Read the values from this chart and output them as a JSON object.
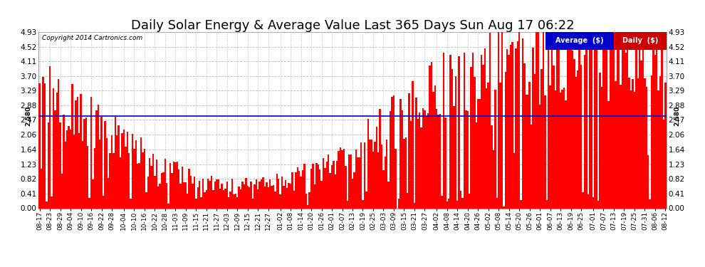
{
  "title": "Daily Solar Energy & Average Value Last 365 Days Sun Aug 17 06:22",
  "copyright": "Copyright 2014 Cartronics.com",
  "average_value": 2.58,
  "y_max": 4.93,
  "y_min": 0.0,
  "y_ticks": [
    0.0,
    0.41,
    0.82,
    1.23,
    1.64,
    2.06,
    2.47,
    2.88,
    3.29,
    3.7,
    4.11,
    4.52,
    4.93
  ],
  "bar_color": "#ff0000",
  "avg_line_color": "#0000cc",
  "background_color": "#ffffff",
  "grid_color": "#bbbbbb",
  "title_color": "#000000",
  "title_fontsize": 13,
  "legend_avg_color": "#0000cc",
  "legend_daily_color": "#cc0000",
  "x_labels": [
    "08-17",
    "08-23",
    "08-29",
    "09-04",
    "09-10",
    "09-16",
    "09-22",
    "09-28",
    "10-04",
    "10-10",
    "10-16",
    "10-22",
    "10-28",
    "11-03",
    "11-09",
    "11-15",
    "11-21",
    "11-27",
    "12-03",
    "12-09",
    "12-15",
    "12-21",
    "12-27",
    "01-02",
    "01-08",
    "01-14",
    "01-20",
    "01-26",
    "02-01",
    "02-07",
    "02-13",
    "02-19",
    "02-25",
    "03-03",
    "03-09",
    "03-15",
    "03-21",
    "03-27",
    "04-02",
    "04-08",
    "04-14",
    "04-20",
    "04-26",
    "05-02",
    "05-08",
    "05-14",
    "05-20",
    "05-26",
    "06-01",
    "06-07",
    "06-13",
    "06-19",
    "06-25",
    "07-01",
    "07-07",
    "07-13",
    "07-19",
    "07-25",
    "07-31",
    "08-06",
    "08-12"
  ],
  "num_bars": 365,
  "avg_label": "2.580"
}
